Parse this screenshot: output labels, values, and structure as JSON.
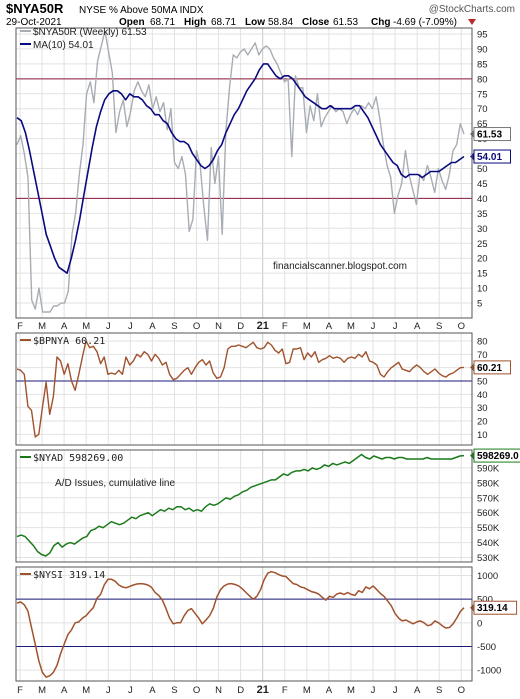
{
  "header": {
    "symbol": "$NYA50R",
    "description": "NYSE % Above 50MA  INDX",
    "watermark": "@StockCharts.com",
    "date": "29-Oct-2021",
    "open_label": "Open",
    "open": "68.71",
    "high_label": "High",
    "high": "68.71",
    "low_label": "Low",
    "low": "58.84",
    "close_label": "Close",
    "close": "61.53",
    "chg_label": "Chg",
    "chg": "-4.69 (-7.09%)"
  },
  "colors": {
    "price": "#a8adb4",
    "ma": "#0a0a80",
    "brown": "#a0522d",
    "green": "#1a7a1a",
    "purple_line": "#8b1a3a",
    "navy_line": "#1a1a7a",
    "grid": "#e2e2e2"
  },
  "chart_data": [
    {
      "type": "line",
      "panel": "main",
      "legend": [
        "$NYA50R (Weekly) 61.53",
        "MA(10) 54.01"
      ],
      "annotation": "financialscanner.blogspot.com",
      "ylim": [
        0,
        97
      ],
      "yticks": [
        5,
        10,
        15,
        20,
        25,
        30,
        35,
        40,
        45,
        50,
        55,
        60,
        65,
        70,
        75,
        80,
        85,
        90,
        95
      ],
      "hlines": [
        80,
        40
      ],
      "last_labels": [
        "61.53",
        "54.01"
      ],
      "series": [
        {
          "name": "$NYA50R (Weekly)",
          "values": [
            58,
            61,
            55,
            47,
            6,
            3,
            10,
            2,
            2,
            2,
            4,
            4,
            5,
            5,
            9,
            28,
            35,
            48,
            58,
            75,
            79,
            72,
            86,
            91,
            96,
            89,
            82,
            62,
            69,
            73,
            64,
            69,
            76,
            79,
            76,
            74,
            78,
            70,
            74,
            69,
            72,
            63,
            70,
            52,
            50,
            54,
            48,
            29,
            33,
            56,
            51,
            37,
            26,
            57,
            45,
            54,
            28,
            62,
            77,
            88,
            87,
            89,
            90,
            88,
            90,
            92,
            88,
            90,
            91,
            90,
            87,
            85,
            82,
            79,
            80,
            54,
            81,
            77,
            77,
            62,
            71,
            66,
            75,
            64,
            67,
            69,
            71,
            69,
            70,
            69,
            65,
            68,
            70,
            68,
            71,
            70,
            72,
            70,
            74,
            67,
            58,
            51,
            47,
            35,
            41,
            45,
            56,
            48,
            43,
            38,
            48,
            46,
            51,
            47,
            42,
            50,
            46,
            43,
            48,
            56,
            58,
            65,
            61.53
          ]
        },
        {
          "name": "MA(10)",
          "values": [
            67,
            66,
            62,
            56,
            49,
            42,
            35,
            28,
            24,
            20,
            17,
            16,
            15,
            20,
            26,
            33,
            41,
            49,
            57,
            64,
            69,
            73,
            75,
            76,
            76,
            75,
            73,
            75,
            74,
            74,
            73,
            71,
            70,
            68,
            68,
            66,
            65,
            62,
            60,
            59,
            59,
            58,
            55,
            53,
            51,
            50,
            51,
            53,
            56,
            58,
            62,
            65,
            68,
            70,
            73,
            76,
            78,
            80,
            83,
            85,
            85,
            83,
            81,
            80,
            81,
            81,
            80,
            78,
            76,
            74,
            73,
            72,
            71,
            70,
            70,
            71,
            70,
            70,
            70,
            70,
            70,
            71,
            71,
            69,
            67,
            64,
            61,
            58,
            56,
            54,
            52,
            51,
            48,
            47,
            48,
            48,
            48,
            47,
            48,
            49,
            49,
            49,
            50,
            51,
            52,
            52,
            53,
            54.01
          ]
        }
      ]
    },
    {
      "type": "line",
      "panel": "bpnya",
      "legend": [
        "$BPNYA 60.21"
      ],
      "ylim": [
        2,
        86
      ],
      "yticks": [
        10,
        20,
        30,
        40,
        50,
        60,
        70,
        80
      ],
      "hlines": [
        50
      ],
      "last_labels": [
        "60.21"
      ],
      "series": [
        {
          "name": "$BPNYA",
          "values": [
            59,
            58,
            55,
            31,
            28,
            8,
            10,
            30,
            49,
            25,
            38,
            68,
            65,
            55,
            63,
            50,
            43,
            55,
            68,
            80,
            75,
            76,
            72,
            63,
            68,
            55,
            56,
            55,
            58,
            55,
            68,
            62,
            65,
            70,
            68,
            72,
            70,
            65,
            70,
            67,
            62,
            64,
            55,
            51,
            52,
            55,
            58,
            60,
            55,
            60,
            64,
            66,
            62,
            65,
            56,
            52,
            53,
            60,
            74,
            76,
            76,
            77,
            76,
            75,
            77,
            79,
            75,
            74,
            75,
            79,
            77,
            73,
            71,
            74,
            63,
            64,
            74,
            74,
            75,
            66,
            71,
            68,
            72,
            64,
            66,
            67,
            69,
            67,
            68,
            67,
            64,
            67,
            68,
            67,
            70,
            68,
            72,
            65,
            64,
            62,
            55,
            53,
            57,
            60,
            62,
            64,
            59,
            58,
            57,
            60,
            62,
            60,
            57,
            55,
            57,
            59,
            56,
            54,
            53,
            55,
            56,
            58,
            60,
            60.21
          ]
        }
      ]
    },
    {
      "type": "line",
      "panel": "nyad",
      "legend": [
        "$NYAD 598269.00"
      ],
      "annotation": "A/D Issues, cumulative line",
      "ylim": [
        527000,
        602000
      ],
      "yticks": [
        530000,
        540000,
        550000,
        560000,
        570000,
        580000,
        590000
      ],
      "ytick_labels": [
        "530K",
        "540K",
        "550K",
        "560K",
        "570K",
        "580K",
        "590K"
      ],
      "last_labels": [
        "598269.0"
      ],
      "series": [
        {
          "name": "$NYAD",
          "values": [
            544000,
            545000,
            544000,
            541000,
            538000,
            534000,
            532000,
            531000,
            533000,
            538000,
            540000,
            537000,
            539000,
            540000,
            539000,
            541000,
            543000,
            544000,
            548000,
            549000,
            551000,
            550000,
            552000,
            554000,
            553000,
            552000,
            553000,
            555000,
            557000,
            556000,
            558000,
            559000,
            560000,
            558000,
            560000,
            562000,
            561000,
            563000,
            562000,
            564000,
            564000,
            562000,
            563000,
            561000,
            562000,
            561000,
            564000,
            566000,
            565000,
            566000,
            568000,
            570000,
            569000,
            571000,
            572000,
            574000,
            575000,
            577000,
            578000,
            579000,
            580000,
            581000,
            582000,
            582000,
            584000,
            586000,
            585000,
            587000,
            588000,
            588000,
            589000,
            588000,
            590000,
            589000,
            590000,
            592000,
            591000,
            593000,
            592000,
            593000,
            594000,
            593000,
            595000,
            597000,
            599000,
            597000,
            596000,
            598000,
            597000,
            596000,
            597000,
            597000,
            596000,
            597000,
            597000,
            596000,
            596000,
            596000,
            596000,
            596000,
            597000,
            596000,
            596000,
            596000,
            596000,
            596000,
            596000,
            597000,
            598000,
            598269
          ]
        }
      ]
    },
    {
      "type": "line",
      "panel": "nysi",
      "legend": [
        "$NYSI 319.14"
      ],
      "ylim": [
        -1230,
        1180
      ],
      "yticks": [
        -1000,
        -500,
        0,
        500,
        1000
      ],
      "hlines": [
        500,
        -500
      ],
      "last_labels": [
        "319.14"
      ],
      "series": [
        {
          "name": "$NYSI",
          "values": [
            420,
            440,
            380,
            250,
            -100,
            -450,
            -800,
            -1050,
            -1150,
            -1120,
            -1050,
            -900,
            -650,
            -450,
            -250,
            -150,
            0,
            20,
            100,
            150,
            240,
            320,
            520,
            600,
            800,
            920,
            920,
            880,
            800,
            760,
            740,
            770,
            800,
            820,
            830,
            820,
            800,
            750,
            640,
            580,
            480,
            300,
            100,
            -20,
            0,
            0,
            150,
            260,
            300,
            200,
            100,
            -20,
            60,
            150,
            300,
            550,
            700,
            780,
            820,
            830,
            810,
            780,
            720,
            640,
            570,
            500,
            560,
            700,
            910,
            1050,
            1080,
            1060,
            1020,
            990,
            980,
            900,
            830,
            810,
            760,
            740,
            700,
            660,
            640,
            610,
            540,
            480,
            560,
            540,
            610,
            630,
            600,
            640,
            600,
            580,
            680,
            640,
            760,
            720,
            780,
            700,
            620,
            560,
            460,
            360,
            200,
            100,
            40,
            60,
            20,
            -20,
            20,
            40,
            0,
            -60,
            -40,
            40,
            0,
            -60,
            -110,
            -100,
            -20,
            100,
            240,
            319.14
          ]
        }
      ]
    }
  ],
  "x_axis": {
    "labels": [
      "F",
      "M",
      "A",
      "M",
      "J",
      "J",
      "A",
      "S",
      "O",
      "N",
      "D",
      "21",
      "F",
      "M",
      "A",
      "M",
      "J",
      "J",
      "A",
      "S",
      "O"
    ]
  }
}
